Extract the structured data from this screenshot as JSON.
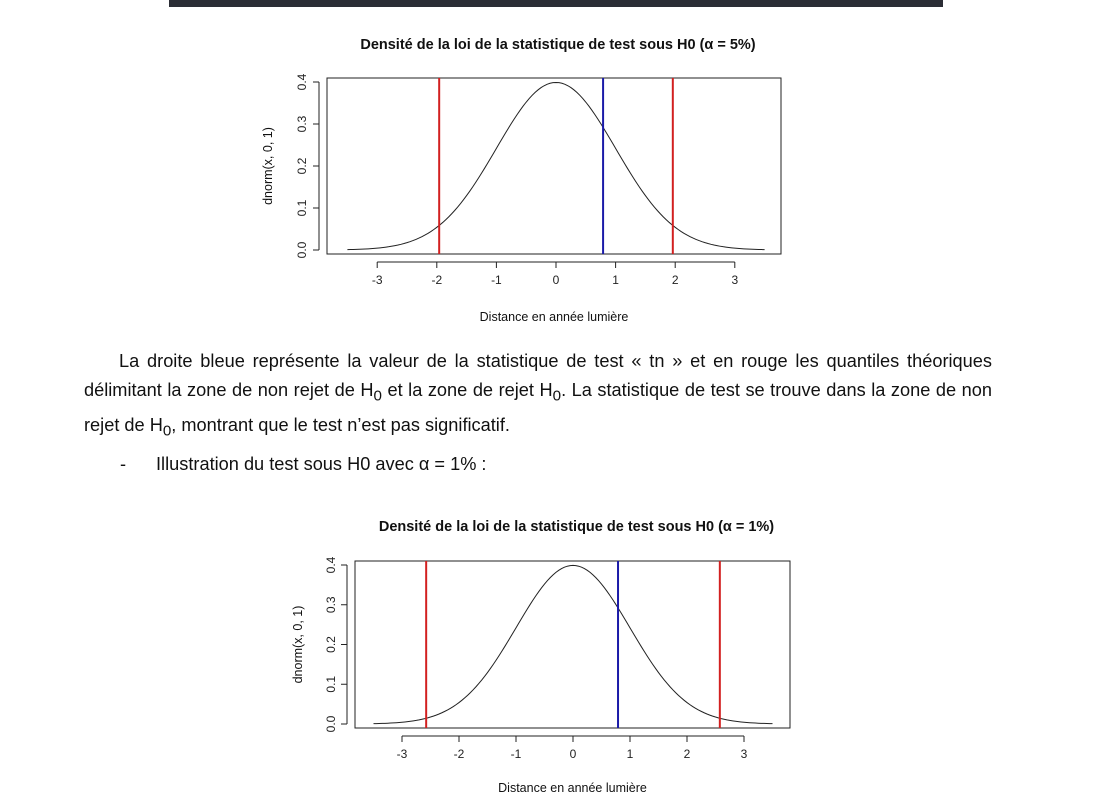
{
  "document": {
    "paragraph": {
      "before_tn": "La droite bleue représente la valeur de la statistique de test « tn » et en rouge les quantiles théoriques délimitant la zone de non rejet de H",
      "middle": " et la zone de rejet H",
      "after_rejet": ". La statistique de test se trouve dans la zone de non rejet de H",
      "end": ", montrant que le test n’est pas significatif.",
      "subscript": "0"
    },
    "bullet": {
      "marker": "-",
      "text": "Illustration du test sous H0 avec α = 1% :"
    }
  },
  "chart_data": [
    {
      "type": "line",
      "title": "Densité de la loi de la statistique de test sous H0 (α = 5%)",
      "xlabel": "Distance en année lumière",
      "ylabel": "dnorm(x, 0, 1)",
      "xlim": [
        -3.5,
        3.5
      ],
      "ylim": [
        0,
        0.4
      ],
      "x_ticks": [
        "-3",
        "-2",
        "-1",
        "0",
        "1",
        "2",
        "3"
      ],
      "y_ticks": [
        "0.0",
        "0.1",
        "0.2",
        "0.3",
        "0.4"
      ],
      "curve": "standard normal density",
      "series": [
        {
          "x": [
            -3.5,
            -3.0,
            -2.5,
            -2.0,
            -1.5,
            -1.0,
            -0.5,
            0.0,
            0.5,
            1.0,
            1.5,
            2.0,
            2.5,
            3.0,
            3.5
          ],
          "y": [
            0.001,
            0.004,
            0.018,
            0.054,
            0.13,
            0.242,
            0.352,
            0.399,
            0.352,
            0.242,
            0.13,
            0.054,
            0.018,
            0.004,
            0.001
          ]
        }
      ],
      "vertical_lines": [
        {
          "x": -1.96,
          "color": "#d22020"
        },
        {
          "x": 1.96,
          "color": "#d22020"
        },
        {
          "x": 0.79,
          "color": "#1a1aa8"
        }
      ],
      "grid": false
    },
    {
      "type": "line",
      "title": "Densité de la loi de la statistique de test sous H0 (α = 1%)",
      "xlabel": "Distance en année lumière",
      "ylabel": "dnorm(x, 0, 1)",
      "xlim": [
        -3.5,
        3.5
      ],
      "ylim": [
        0,
        0.4
      ],
      "x_ticks": [
        "-3",
        "-2",
        "-1",
        "0",
        "1",
        "2",
        "3"
      ],
      "y_ticks": [
        "0.0",
        "0.1",
        "0.2",
        "0.3",
        "0.4"
      ],
      "curve": "standard normal density",
      "series": [
        {
          "x": [
            -3.5,
            -3.0,
            -2.5,
            -2.0,
            -1.5,
            -1.0,
            -0.5,
            0.0,
            0.5,
            1.0,
            1.5,
            2.0,
            2.5,
            3.0,
            3.5
          ],
          "y": [
            0.001,
            0.004,
            0.018,
            0.054,
            0.13,
            0.242,
            0.352,
            0.399,
            0.352,
            0.242,
            0.13,
            0.054,
            0.018,
            0.004,
            0.001
          ]
        }
      ],
      "vertical_lines": [
        {
          "x": -2.576,
          "color": "#d22020"
        },
        {
          "x": 2.576,
          "color": "#d22020"
        },
        {
          "x": 0.79,
          "color": "#1a1aa8"
        }
      ],
      "grid": false
    }
  ]
}
